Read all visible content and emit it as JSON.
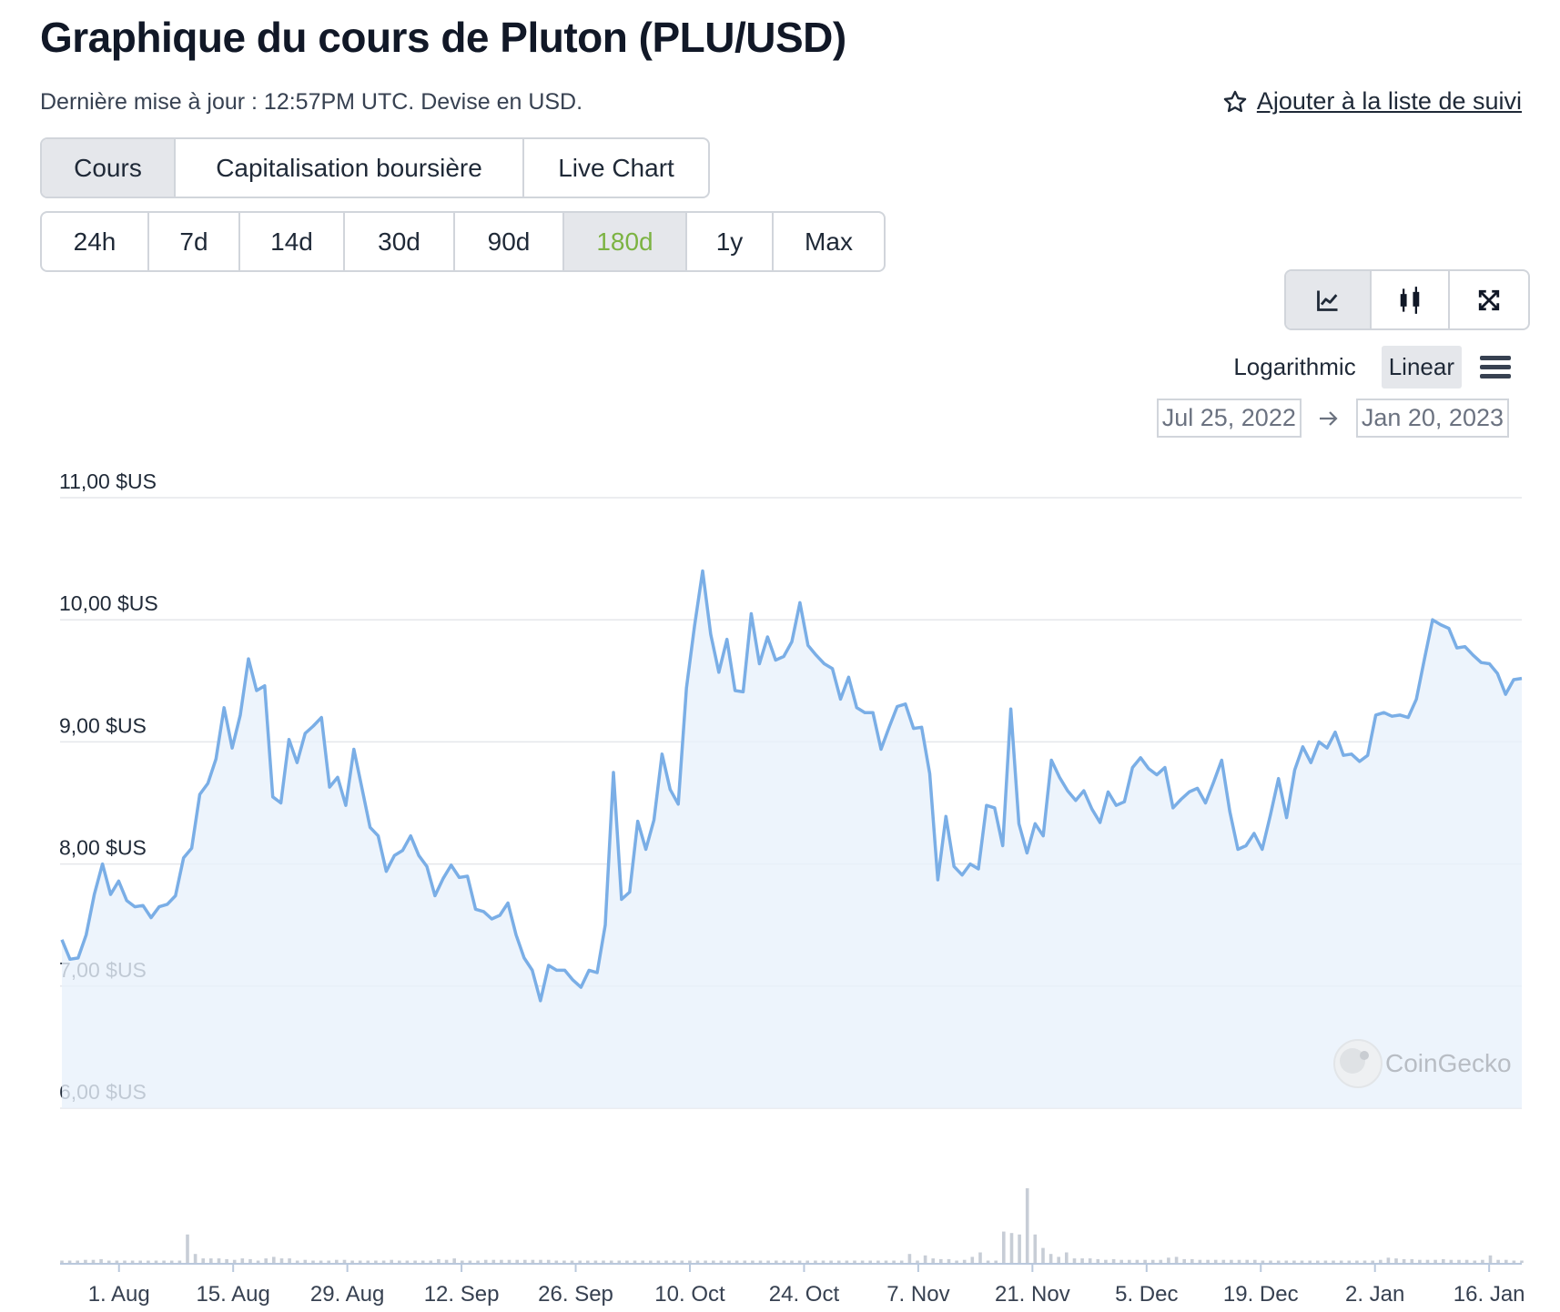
{
  "header": {
    "title": "Graphique du cours de Pluton (PLU/USD)",
    "subtitle": "Dernière mise à jour : 12:57PM UTC. Devise en USD.",
    "watchlist_label": "Ajouter à la liste de suivi",
    "watchlist_icon": "star-outline-icon"
  },
  "tabs": [
    {
      "label": "Cours",
      "active": true
    },
    {
      "label": "Capitalisation boursière",
      "active": false
    },
    {
      "label": "Live Chart",
      "active": false
    }
  ],
  "ranges": [
    {
      "label": "24h",
      "active": false
    },
    {
      "label": "7d",
      "active": false
    },
    {
      "label": "14d",
      "active": false
    },
    {
      "label": "30d",
      "active": false
    },
    {
      "label": "90d",
      "active": false
    },
    {
      "label": "180d",
      "active": true
    },
    {
      "label": "1y",
      "active": false
    },
    {
      "label": "Max",
      "active": false
    }
  ],
  "tools": {
    "line_icon": "line-chart-icon",
    "candle_icon": "candlestick-icon",
    "fullscreen_icon": "expand-icon",
    "active": "line"
  },
  "scale": {
    "logarithmic_label": "Logarithmic",
    "linear_label": "Linear",
    "active": "linear",
    "menu_icon": "hamburger-menu-icon"
  },
  "date_range": {
    "from": "Jul 25, 2022",
    "to": "Jan 20, 2023",
    "arrow_icon": "arrow-right-icon"
  },
  "watermark": "CoinGecko",
  "colors": {
    "line": "#7aaee6",
    "area": "#e8f1fb",
    "volume": "#c7cdd6",
    "active_range": "#7cb342",
    "grid": "#e5e7eb"
  },
  "chart_data": {
    "type": "area",
    "ylim": [
      6,
      11
    ],
    "y_ticks": [
      "6,00 $US",
      "7,00 $US",
      "8,00 $US",
      "9,00 $US",
      "10,00 $US",
      "11,00 $US"
    ],
    "x_ticks": [
      "1. Aug",
      "15. Aug",
      "29. Aug",
      "12. Sep",
      "26. Sep",
      "10. Oct",
      "24. Oct",
      "7. Nov",
      "21. Nov",
      "5. Dec",
      "19. Dec",
      "2. Jan",
      "16. Jan"
    ],
    "x_start": "2022-07-25",
    "x_end": "2023-01-20",
    "series": [
      {
        "values": [
          7.38,
          7.22,
          7.23,
          7.42,
          7.75,
          8.0,
          7.75,
          7.86,
          7.7,
          7.65,
          7.66,
          7.56,
          7.65,
          7.67,
          7.74,
          8.05,
          8.13,
          8.57,
          8.66,
          8.86,
          9.28,
          8.95,
          9.22,
          9.68,
          9.42,
          9.46,
          8.55,
          8.5,
          9.02,
          8.83,
          9.07,
          9.13,
          9.2,
          8.63,
          8.71,
          8.48,
          8.94,
          8.62,
          8.3,
          8.23,
          7.94,
          8.07,
          8.11,
          8.23,
          8.07,
          7.98,
          7.74,
          7.88,
          7.99,
          7.89,
          7.9,
          7.63,
          7.61,
          7.55,
          7.58,
          7.68,
          7.42,
          7.23,
          7.13,
          6.88,
          7.17,
          7.13,
          7.13,
          7.05,
          6.99,
          7.13,
          7.11,
          7.5,
          8.75,
          7.71,
          7.77,
          8.35,
          8.12,
          8.36,
          8.9,
          8.61,
          8.49,
          9.44,
          9.95,
          10.4,
          9.88,
          9.57,
          9.84,
          9.42,
          9.41,
          10.05,
          9.64,
          9.86,
          9.67,
          9.7,
          9.82,
          10.14,
          9.79,
          9.71,
          9.64,
          9.6,
          9.35,
          9.53,
          9.28,
          9.24,
          9.24,
          8.94,
          9.12,
          9.29,
          9.31,
          9.11,
          9.12,
          8.74,
          7.87,
          8.39,
          7.98,
          7.91,
          8.0,
          7.96,
          8.48,
          8.46,
          8.15,
          9.27,
          8.33,
          8.09,
          8.33,
          8.23,
          8.85,
          8.71,
          8.6,
          8.52,
          8.6,
          8.45,
          8.34,
          8.59,
          8.48,
          8.51,
          8.79,
          8.87,
          8.78,
          8.73,
          8.79,
          8.46,
          8.53,
          8.59,
          8.62,
          8.5,
          8.67,
          8.85,
          8.43,
          8.12,
          8.15,
          8.25,
          8.12,
          8.4,
          8.7,
          8.38,
          8.77,
          8.96,
          8.83,
          9.0,
          8.95,
          9.08,
          8.89,
          8.9,
          8.84,
          8.89,
          9.22,
          9.24,
          9.21,
          9.22,
          9.2,
          9.35,
          9.68,
          10.0,
          9.96,
          9.93,
          9.77,
          9.78,
          9.71,
          9.65,
          9.64,
          9.56,
          9.39,
          9.51,
          9.52
        ]
      }
    ],
    "volume": [
      0.03,
      0.03,
      0.03,
      0.04,
      0.04,
      0.05,
      0.03,
      0.03,
      0.03,
      0.03,
      0.03,
      0.03,
      0.03,
      0.03,
      0.03,
      0.03,
      0.38,
      0.12,
      0.06,
      0.06,
      0.06,
      0.05,
      0.04,
      0.06,
      0.05,
      0.03,
      0.06,
      0.08,
      0.06,
      0.06,
      0.03,
      0.04,
      0.03,
      0.03,
      0.03,
      0.04,
      0.04,
      0.03,
      0.03,
      0.03,
      0.03,
      0.03,
      0.04,
      0.03,
      0.03,
      0.03,
      0.03,
      0.03,
      0.05,
      0.04,
      0.06,
      0.03,
      0.03,
      0.03,
      0.04,
      0.04,
      0.04,
      0.04,
      0.04,
      0.04,
      0.04,
      0.04,
      0.04,
      0.03,
      0.03,
      0.03,
      0.03,
      0.03,
      0.03,
      0.03,
      0.03,
      0.03,
      0.03,
      0.03,
      0.03,
      0.03,
      0.03,
      0.03,
      0.03,
      0.03,
      0.03,
      0.03,
      0.03,
      0.03,
      0.03,
      0.03,
      0.03,
      0.03,
      0.03,
      0.03,
      0.03,
      0.03,
      0.03,
      0.03,
      0.03,
      0.03,
      0.03,
      0.03,
      0.03,
      0.03,
      0.03,
      0.03,
      0.03,
      0.03,
      0.03,
      0.03,
      0.03,
      0.03,
      0.12,
      0.03,
      0.1,
      0.06,
      0.05,
      0.05,
      0.03,
      0.04,
      0.08,
      0.14,
      0.03,
      0.03,
      0.42,
      0.4,
      0.38,
      1.0,
      0.38,
      0.2,
      0.12,
      0.08,
      0.14,
      0.06,
      0.06,
      0.06,
      0.05,
      0.04,
      0.05,
      0.04,
      0.04,
      0.04,
      0.04,
      0.04,
      0.04,
      0.07,
      0.08,
      0.05,
      0.05,
      0.04,
      0.04,
      0.04,
      0.04,
      0.04,
      0.04,
      0.04,
      0.04,
      0.03,
      0.03,
      0.03,
      0.03,
      0.03,
      0.03,
      0.03,
      0.03,
      0.03,
      0.03,
      0.03,
      0.03,
      0.03,
      0.03,
      0.03,
      0.04,
      0.07,
      0.06,
      0.05,
      0.05,
      0.04,
      0.04,
      0.04,
      0.05,
      0.04,
      0.04,
      0.04,
      0.03,
      0.04,
      0.1,
      0.04,
      0.04,
      0.03,
      0.03
    ]
  }
}
